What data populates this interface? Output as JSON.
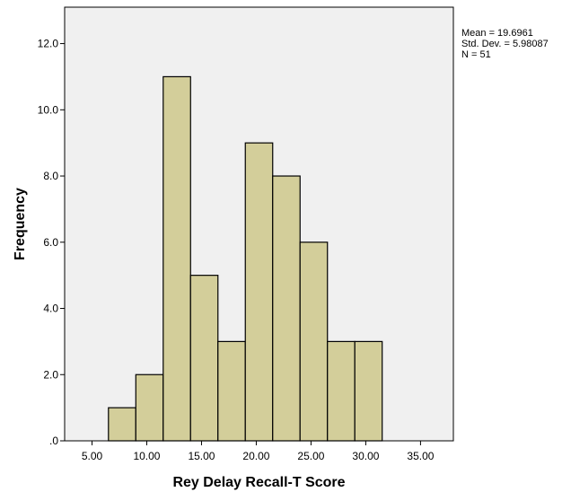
{
  "chart_data": {
    "type": "bar",
    "title": "",
    "xlabel": "Rey Delay Recall-T Score",
    "ylabel": "Frequency",
    "bins": [
      {
        "from": 6.5,
        "to": 9.0,
        "count": 1
      },
      {
        "from": 9.0,
        "to": 11.5,
        "count": 2
      },
      {
        "from": 11.5,
        "to": 14.0,
        "count": 11
      },
      {
        "from": 14.0,
        "to": 16.5,
        "count": 5
      },
      {
        "from": 16.5,
        "to": 19.0,
        "count": 3
      },
      {
        "from": 19.0,
        "to": 21.5,
        "count": 9
      },
      {
        "from": 21.5,
        "to": 24.0,
        "count": 8
      },
      {
        "from": 24.0,
        "to": 26.5,
        "count": 6
      },
      {
        "from": 26.5,
        "to": 29.0,
        "count": 3
      },
      {
        "from": 29.0,
        "to": 31.5,
        "count": 3
      }
    ],
    "xlim": [
      2.5,
      38.0
    ],
    "ylim": [
      0,
      13.1
    ],
    "x_ticks": [
      5,
      10,
      15,
      20,
      25,
      30,
      35
    ],
    "x_tick_labels": [
      "5.00",
      "10.00",
      "15.00",
      "20.00",
      "25.00",
      "30.00",
      "35.00"
    ],
    "y_ticks": [
      0,
      2,
      4,
      6,
      8,
      10,
      12
    ],
    "y_tick_labels": [
      ".0",
      "2.0",
      "4.0",
      "6.0",
      "8.0",
      "10.0",
      "12.0"
    ],
    "grid": false,
    "legend": "none",
    "colors": {
      "plot_background": "#f0f0f0",
      "bar_fill": "#d3ce9a",
      "bar_stroke": "#000000"
    },
    "stats": {
      "mean": "Mean = 19.6961",
      "std_dev": "Std. Dev. = 5.98087",
      "n": "N = 51"
    }
  }
}
